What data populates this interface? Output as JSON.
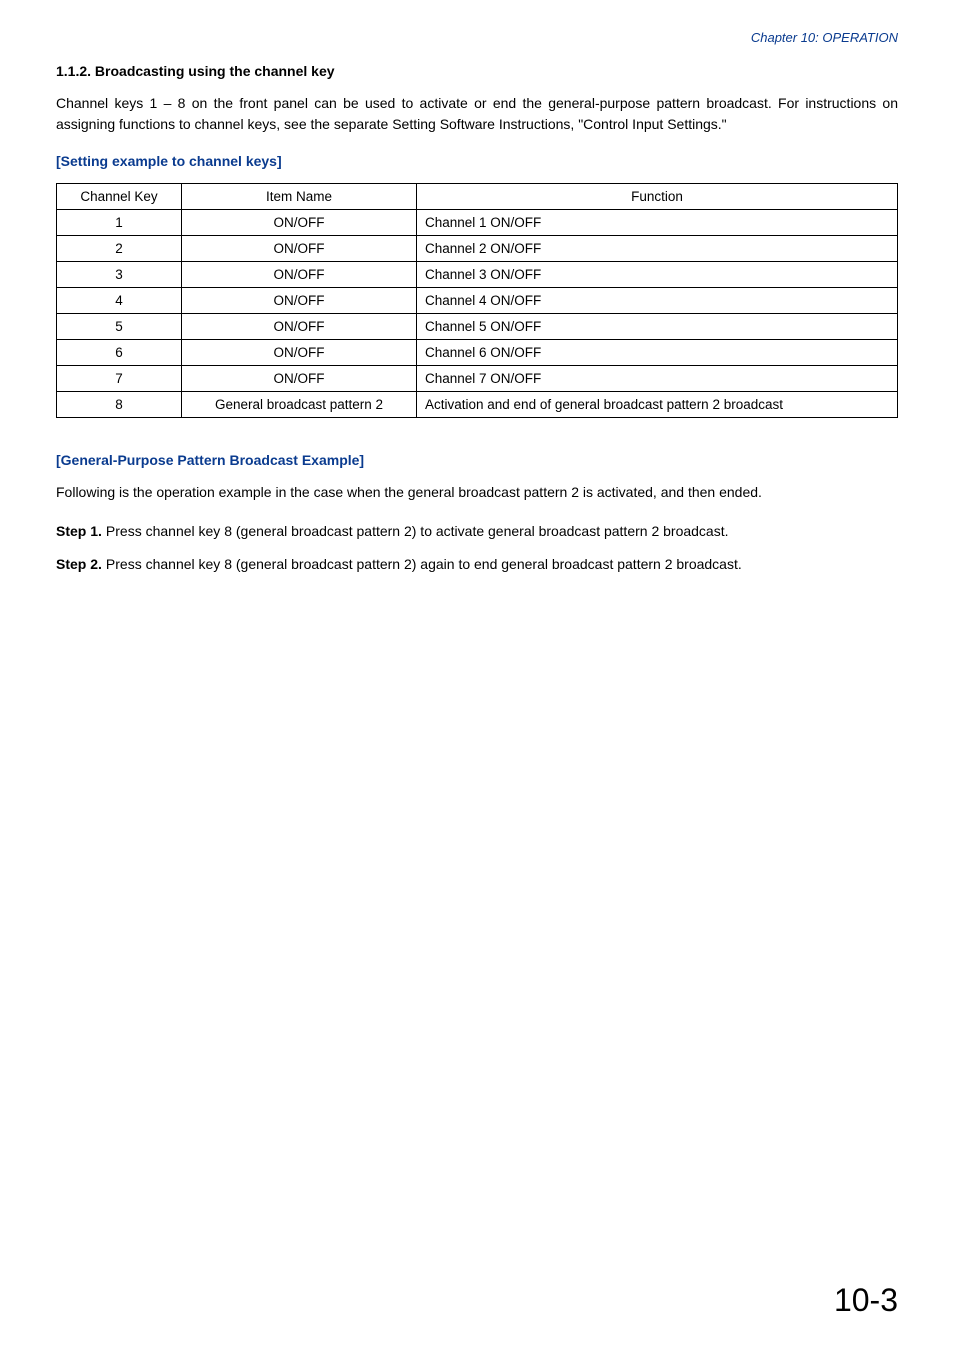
{
  "chapter_header": "Chapter 10: OPERATION",
  "section_title": "1.1.2. Broadcasting using the channel key",
  "intro_paragraph": "Channel keys 1 – 8 on the front panel can be used to activate or end the general-purpose pattern broadcast. For instructions on assigning functions to channel keys, see the separate Setting Software Instructions, \"Control Input Settings.\"",
  "table_heading": "[Setting example to channel keys]",
  "table": {
    "columns": [
      "Channel Key",
      "Item Name",
      "Function"
    ],
    "rows": [
      [
        "1",
        "ON/OFF",
        "Channel 1 ON/OFF"
      ],
      [
        "2",
        "ON/OFF",
        "Channel 2 ON/OFF"
      ],
      [
        "3",
        "ON/OFF",
        "Channel 3 ON/OFF"
      ],
      [
        "4",
        "ON/OFF",
        "Channel 4 ON/OFF"
      ],
      [
        "5",
        "ON/OFF",
        "Channel 5 ON/OFF"
      ],
      [
        "6",
        "ON/OFF",
        "Channel 6 ON/OFF"
      ],
      [
        "7",
        "ON/OFF",
        "Channel 7 ON/OFF"
      ],
      [
        "8",
        "General broadcast pattern 2",
        "Activation and end of general broadcast pattern 2 broadcast"
      ]
    ]
  },
  "example_heading": "[General-Purpose Pattern Broadcast Example]",
  "example_intro": "Following is the operation example in the case when the general broadcast pattern 2 is activated, and then ended.",
  "steps": [
    {
      "label": "Step 1.",
      "text": "Press channel key 8 (general broadcast pattern 2) to activate general broadcast pattern 2 broadcast."
    },
    {
      "label": "Step 2.",
      "text": "Press channel key 8 (general broadcast pattern 2) again to end general broadcast pattern 2 broadcast."
    }
  ],
  "page_number": "10-3",
  "colors": {
    "accent": "#0a3b8f",
    "text": "#000000",
    "background": "#ffffff",
    "border": "#000000"
  }
}
